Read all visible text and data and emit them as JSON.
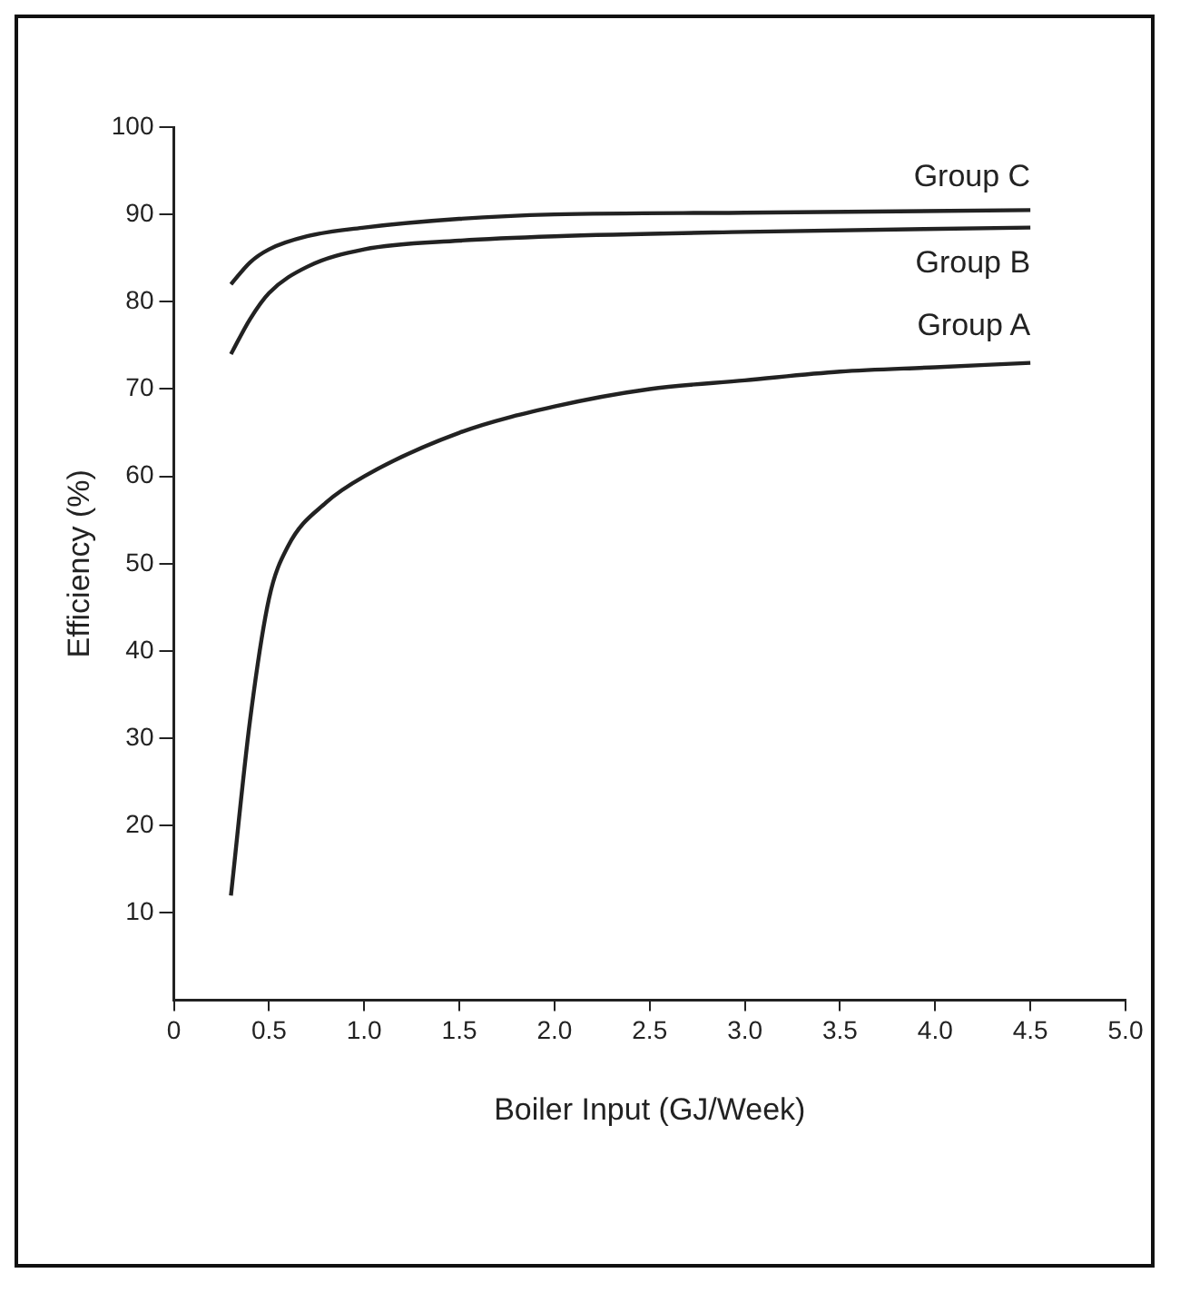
{
  "chart_data": {
    "type": "line",
    "xlabel": "Boiler Input (GJ/Week)",
    "ylabel": "Efficiency (%)",
    "xlim": [
      0,
      5
    ],
    "xticks": [
      0,
      0.5,
      {
        "value": 1,
        "label": "1.0"
      },
      1.5,
      {
        "value": 2,
        "label": "2.0"
      },
      2.5,
      {
        "value": 3,
        "label": "3.0"
      },
      3.5,
      {
        "value": 4,
        "label": "4.0"
      },
      4.5,
      {
        "value": 5,
        "label": "5.0"
      }
    ],
    "ylim": [
      0,
      100
    ],
    "yticks": [
      10,
      20,
      30,
      40,
      50,
      60,
      70,
      80,
      90,
      100
    ],
    "grid": false,
    "legend": false,
    "marker": "none",
    "line_style": "solid",
    "series": [
      {
        "name": "Group C",
        "color": "#222222",
        "x": [
          0.3,
          0.4,
          0.5,
          0.7,
          1.0,
          1.5,
          2.0,
          3.0,
          4.5
        ],
        "values": [
          82,
          84.5,
          86,
          87.5,
          88.5,
          89.5,
          90,
          90.2,
          90.5
        ]
      },
      {
        "name": "Group B",
        "color": "#222222",
        "x": [
          0.3,
          0.4,
          0.5,
          0.7,
          1.0,
          1.5,
          2.0,
          3.0,
          4.5
        ],
        "values": [
          74,
          78,
          81,
          84,
          86,
          87,
          87.5,
          88,
          88.5
        ]
      },
      {
        "name": "Group A",
        "color": "#222222",
        "x": [
          0.3,
          0.4,
          0.5,
          0.6,
          0.8,
          1.0,
          1.5,
          2.0,
          2.5,
          3.0,
          3.5,
          4.0,
          4.5
        ],
        "values": [
          12,
          32,
          46,
          52,
          57,
          60,
          65,
          68,
          70,
          71,
          72,
          72.5,
          73
        ]
      }
    ]
  }
}
